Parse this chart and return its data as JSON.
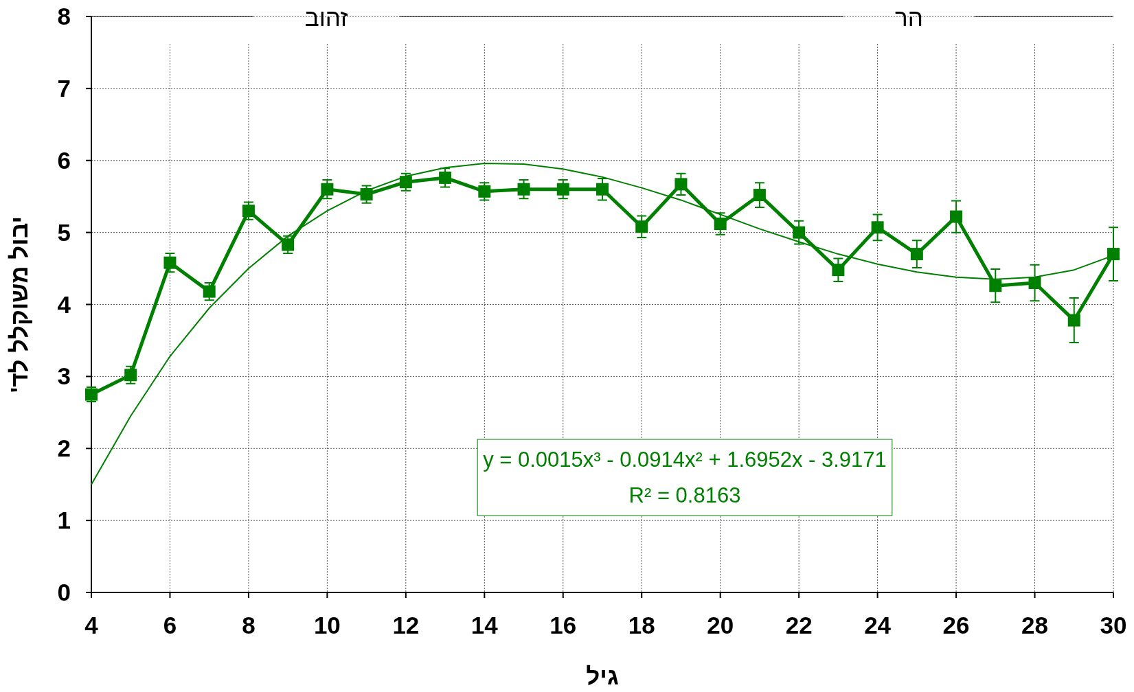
{
  "chart_data": {
    "type": "line",
    "xlabel": "גיל",
    "ylabel": "יבול משוקלל לד'",
    "xlim": [
      4,
      30
    ],
    "xticks": [
      4,
      6,
      8,
      10,
      12,
      14,
      16,
      18,
      20,
      22,
      24,
      26,
      28,
      30
    ],
    "ylim": [
      0,
      8
    ],
    "yticks": [
      0,
      1,
      2,
      3,
      4,
      5,
      6,
      7,
      8
    ],
    "grid": true,
    "series": [
      {
        "type": "line",
        "color": "#008000",
        "marker": "square",
        "line_style": "solid",
        "x": [
          4,
          5,
          6,
          7,
          8,
          9,
          10,
          11,
          12,
          13,
          14,
          15,
          16,
          17,
          18,
          19,
          20,
          21,
          22,
          23,
          24,
          25,
          26,
          27,
          28,
          29,
          30
        ],
        "values": [
          2.75,
          3.02,
          4.58,
          4.18,
          5.3,
          4.83,
          5.6,
          5.53,
          5.7,
          5.76,
          5.57,
          5.6,
          5.6,
          5.6,
          5.08,
          5.67,
          5.12,
          5.52,
          5.0,
          4.48,
          5.07,
          4.7,
          5.22,
          4.26,
          4.3,
          3.78,
          4.7
        ],
        "errors": [
          0.1,
          0.12,
          0.13,
          0.12,
          0.12,
          0.12,
          0.13,
          0.12,
          0.12,
          0.13,
          0.12,
          0.13,
          0.13,
          0.15,
          0.15,
          0.15,
          0.15,
          0.17,
          0.16,
          0.16,
          0.18,
          0.19,
          0.22,
          0.23,
          0.25,
          0.31,
          0.37
        ]
      },
      {
        "type": "line",
        "color": "#008000",
        "marker": "none",
        "line_style": "solid",
        "x": [
          4,
          5,
          6,
          7,
          8,
          9,
          10,
          11,
          12,
          13,
          14,
          15,
          16,
          17,
          18,
          19,
          20,
          21,
          22,
          23,
          24,
          25,
          26,
          27,
          28,
          29,
          30
        ],
        "values": [
          1.5,
          2.45,
          3.28,
          3.95,
          4.5,
          4.95,
          5.3,
          5.58,
          5.78,
          5.9,
          5.96,
          5.95,
          5.88,
          5.77,
          5.62,
          5.45,
          5.25,
          5.05,
          4.87,
          4.7,
          4.56,
          4.45,
          4.38,
          4.35,
          4.38,
          4.48,
          4.68
        ]
      }
    ],
    "annotations": [
      "זהוב",
      "הר",
      "y = 0.0015x³ - 0.0914x² + 1.6952x - 3.9171",
      "R² = 0.8163"
    ]
  }
}
